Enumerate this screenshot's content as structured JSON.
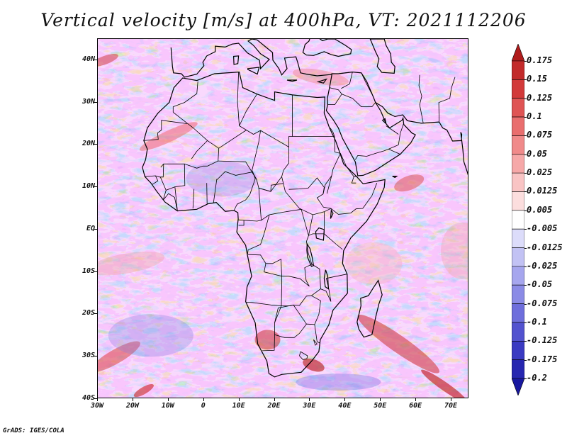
{
  "title": "Vertical velocity [m/s] at 400hPa, VT: 2021112206",
  "footer": "GrADS: IGES/COLA",
  "map": {
    "lon_range": [
      -30,
      75
    ],
    "lat_range": [
      -40,
      45
    ],
    "lat_labels": [
      {
        "lat": 40,
        "text": "40N"
      },
      {
        "lat": 30,
        "text": "30N"
      },
      {
        "lat": 20,
        "text": "20N"
      },
      {
        "lat": 10,
        "text": "10N"
      },
      {
        "lat": 0,
        "text": "EQ"
      },
      {
        "lat": -10,
        "text": "10S"
      },
      {
        "lat": -20,
        "text": "20S"
      },
      {
        "lat": -30,
        "text": "30S"
      },
      {
        "lat": -40,
        "text": "40S"
      }
    ],
    "lon_labels": [
      {
        "lon": -30,
        "text": "30W"
      },
      {
        "lon": -20,
        "text": "20W"
      },
      {
        "lon": -10,
        "text": "10W"
      },
      {
        "lon": 0,
        "text": "0"
      },
      {
        "lon": 10,
        "text": "10E"
      },
      {
        "lon": 20,
        "text": "20E"
      },
      {
        "lon": 30,
        "text": "30E"
      },
      {
        "lon": 40,
        "text": "40E"
      },
      {
        "lon": 50,
        "text": "50E"
      },
      {
        "lon": 60,
        "text": "60E"
      },
      {
        "lon": 70,
        "text": "70E"
      }
    ]
  },
  "legend": {
    "units": "m/s",
    "levels": [
      "0.175",
      "0.15",
      "0.125",
      "0.1",
      "0.075",
      "0.05",
      "0.025",
      "0.0125",
      "0.005",
      "-0.005",
      "-0.0125",
      "-0.025",
      "-0.05",
      "-0.075",
      "-0.1",
      "-0.125",
      "-0.175",
      "-0.2"
    ],
    "colors": [
      "#b01c1c",
      "#c22a2a",
      "#d23a3a",
      "#df5454",
      "#e96e6e",
      "#f08a8a",
      "#f6a8a8",
      "#f9c4c4",
      "#fcdede",
      "#ffffff",
      "#dcdcfa",
      "#c2c2f4",
      "#a6a6ee",
      "#8b8be6",
      "#6e6edc",
      "#5252cf",
      "#3a3ac2",
      "#2626b0",
      "#1818a0"
    ]
  }
}
